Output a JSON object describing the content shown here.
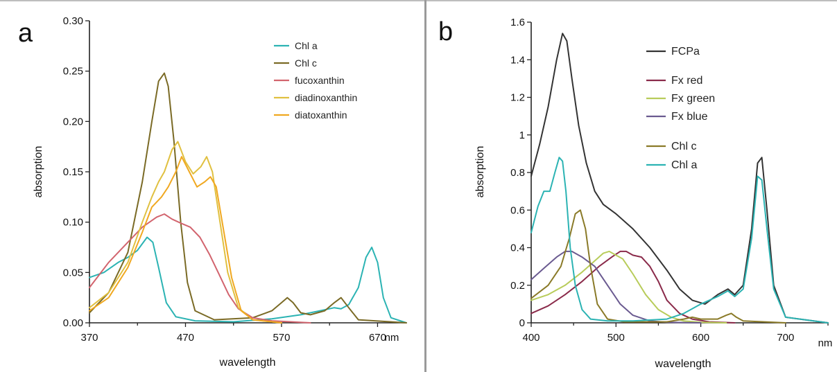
{
  "chart_data": [
    {
      "type": "line",
      "panel_label": "a",
      "xlabel": "wavelength",
      "ylabel": "absorption",
      "x_unit": "nm",
      "xlim": [
        370,
        700
      ],
      "ylim": [
        0,
        0.3
      ],
      "x_ticks": [
        370,
        470,
        570,
        670
      ],
      "y_ticks": [
        0.0,
        0.05,
        0.1,
        0.15,
        0.2,
        0.25,
        0.3
      ],
      "y_tick_labels": [
        "0.00",
        "0.05",
        "0.10",
        "0.15",
        "0.20",
        "0.25",
        "0.30"
      ],
      "legend_placement": "top-right",
      "series": [
        {
          "name": "Chl a",
          "color": "#2bb3b3",
          "x": [
            370,
            385,
            400,
            410,
            420,
            430,
            436,
            442,
            450,
            460,
            480,
            520,
            560,
            590,
            610,
            625,
            632,
            640,
            650,
            658,
            664,
            670,
            676,
            684,
            700
          ],
          "y": [
            0.045,
            0.05,
            0.06,
            0.065,
            0.072,
            0.085,
            0.08,
            0.055,
            0.02,
            0.006,
            0.002,
            0.001,
            0.004,
            0.008,
            0.012,
            0.015,
            0.014,
            0.018,
            0.035,
            0.065,
            0.075,
            0.06,
            0.025,
            0.005,
            0.0
          ]
        },
        {
          "name": "Chl c",
          "color": "#7a6a25",
          "x": [
            370,
            390,
            410,
            425,
            435,
            442,
            448,
            452,
            458,
            465,
            472,
            480,
            500,
            540,
            560,
            570,
            576,
            582,
            590,
            600,
            615,
            625,
            632,
            640,
            650,
            700
          ],
          "y": [
            0.01,
            0.03,
            0.07,
            0.14,
            0.2,
            0.24,
            0.248,
            0.235,
            0.18,
            0.1,
            0.04,
            0.012,
            0.003,
            0.005,
            0.012,
            0.02,
            0.025,
            0.02,
            0.01,
            0.008,
            0.012,
            0.02,
            0.025,
            0.015,
            0.003,
            0.0
          ]
        },
        {
          "name": "fucoxanthin",
          "color": "#d2646e",
          "x": [
            370,
            390,
            410,
            425,
            440,
            448,
            456,
            465,
            475,
            485,
            495,
            505,
            515,
            525,
            540,
            560,
            600
          ],
          "y": [
            0.035,
            0.06,
            0.08,
            0.095,
            0.105,
            0.108,
            0.103,
            0.099,
            0.095,
            0.085,
            0.068,
            0.048,
            0.028,
            0.014,
            0.005,
            0.002,
            0.0
          ]
        },
        {
          "name": "diadinoxanthin",
          "color": "#e0c040",
          "x": [
            370,
            390,
            410,
            425,
            435,
            442,
            448,
            456,
            462,
            470,
            478,
            486,
            492,
            498,
            506,
            514,
            525,
            540,
            570
          ],
          "y": [
            0.015,
            0.03,
            0.06,
            0.1,
            0.125,
            0.14,
            0.15,
            0.172,
            0.18,
            0.16,
            0.148,
            0.155,
            0.165,
            0.15,
            0.1,
            0.05,
            0.015,
            0.003,
            0.0
          ]
        },
        {
          "name": "diatoxanthin",
          "color": "#f0a820",
          "x": [
            370,
            390,
            410,
            425,
            435,
            445,
            452,
            460,
            466,
            474,
            482,
            490,
            496,
            502,
            510,
            518,
            528,
            540,
            570
          ],
          "y": [
            0.012,
            0.025,
            0.055,
            0.09,
            0.115,
            0.125,
            0.135,
            0.15,
            0.165,
            0.15,
            0.135,
            0.14,
            0.145,
            0.135,
            0.09,
            0.045,
            0.012,
            0.003,
            0.0
          ]
        }
      ]
    },
    {
      "type": "line",
      "panel_label": "b",
      "xlabel": "wavelength",
      "ylabel": "absorption",
      "x_unit": "nm",
      "xlim": [
        400,
        750
      ],
      "ylim": [
        0,
        1.6
      ],
      "x_ticks": [
        400,
        500,
        600,
        700
      ],
      "y_ticks": [
        0,
        0.2,
        0.4,
        0.6,
        0.8,
        1.0,
        1.2,
        1.4,
        1.6
      ],
      "y_tick_labels": [
        "0",
        "0.2",
        "0.4",
        "0.6",
        "0.8",
        "1",
        "1.2",
        "1.4",
        "1.6"
      ],
      "legend_placement": "top-right",
      "series": [
        {
          "name": "FCPa",
          "color": "#333333",
          "x": [
            400,
            410,
            420,
            430,
            437,
            442,
            448,
            456,
            465,
            475,
            485,
            500,
            520,
            540,
            560,
            575,
            590,
            605,
            620,
            632,
            640,
            650,
            660,
            667,
            672,
            678,
            686,
            700,
            750
          ],
          "y": [
            0.78,
            0.95,
            1.15,
            1.4,
            1.54,
            1.5,
            1.3,
            1.05,
            0.85,
            0.7,
            0.63,
            0.58,
            0.5,
            0.4,
            0.28,
            0.18,
            0.12,
            0.1,
            0.15,
            0.18,
            0.15,
            0.2,
            0.5,
            0.85,
            0.88,
            0.6,
            0.2,
            0.03,
            0.0
          ]
        },
        {
          "name": "Fx red",
          "color": "#8a2a4a",
          "x": [
            400,
            420,
            440,
            460,
            480,
            495,
            505,
            512,
            520,
            530,
            540,
            550,
            560,
            575,
            590,
            610,
            640
          ],
          "y": [
            0.05,
            0.09,
            0.15,
            0.22,
            0.3,
            0.35,
            0.38,
            0.38,
            0.36,
            0.35,
            0.3,
            0.22,
            0.12,
            0.05,
            0.02,
            0.005,
            0.0
          ]
        },
        {
          "name": "Fx green",
          "color": "#b8cc5a",
          "x": [
            400,
            420,
            440,
            460,
            475,
            485,
            492,
            500,
            508,
            520,
            535,
            550,
            565,
            580,
            600,
            630
          ],
          "y": [
            0.12,
            0.15,
            0.2,
            0.27,
            0.33,
            0.37,
            0.38,
            0.36,
            0.34,
            0.26,
            0.15,
            0.07,
            0.03,
            0.01,
            0.003,
            0.0
          ]
        },
        {
          "name": "Fx blue",
          "color": "#6a5a90",
          "x": [
            400,
            415,
            430,
            440,
            448,
            460,
            475,
            490,
            505,
            520,
            540,
            560,
            600
          ],
          "y": [
            0.23,
            0.29,
            0.35,
            0.38,
            0.38,
            0.35,
            0.3,
            0.2,
            0.1,
            0.04,
            0.01,
            0.003,
            0.0
          ]
        },
        {
          "name": "Chl c",
          "color": "#8a7a28",
          "x": [
            400,
            420,
            435,
            445,
            452,
            458,
            464,
            470,
            478,
            490,
            510,
            560,
            580,
            590,
            600,
            620,
            630,
            636,
            642,
            650,
            700
          ],
          "y": [
            0.13,
            0.2,
            0.3,
            0.45,
            0.58,
            0.6,
            0.5,
            0.3,
            0.1,
            0.02,
            0.005,
            0.005,
            0.02,
            0.03,
            0.02,
            0.02,
            0.04,
            0.05,
            0.03,
            0.01,
            0.0
          ]
        },
        {
          "name": "Chl a",
          "color": "#2bb3b3",
          "x": [
            400,
            408,
            415,
            422,
            428,
            433,
            437,
            441,
            446,
            452,
            460,
            470,
            490,
            520,
            560,
            580,
            600,
            620,
            632,
            640,
            650,
            660,
            667,
            672,
            678,
            686,
            700,
            750
          ],
          "y": [
            0.48,
            0.62,
            0.7,
            0.7,
            0.8,
            0.88,
            0.86,
            0.7,
            0.4,
            0.2,
            0.07,
            0.02,
            0.01,
            0.01,
            0.02,
            0.05,
            0.1,
            0.14,
            0.17,
            0.14,
            0.18,
            0.45,
            0.78,
            0.76,
            0.5,
            0.18,
            0.03,
            0.0
          ]
        }
      ]
    }
  ]
}
